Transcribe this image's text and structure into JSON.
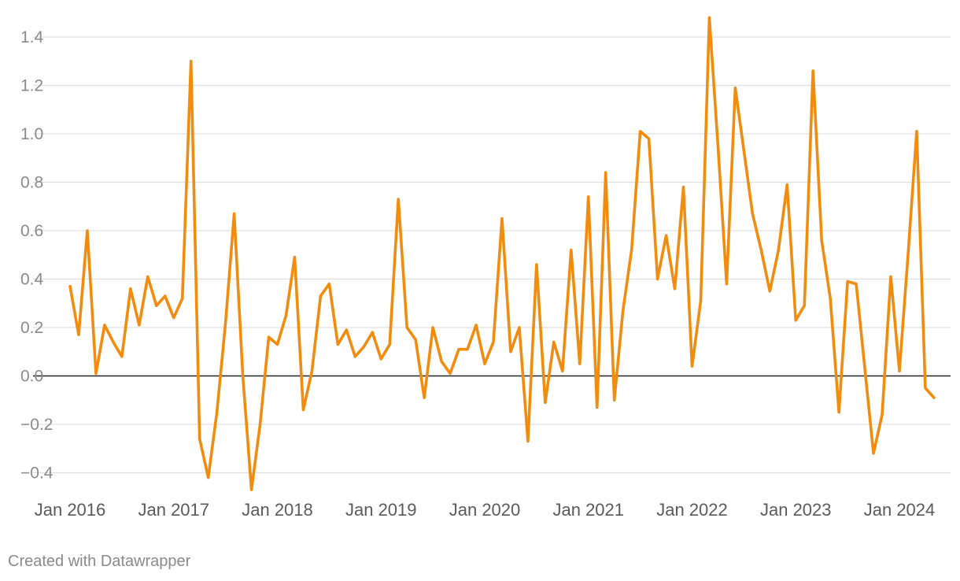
{
  "chart_data": {
    "type": "line",
    "ylim": [
      -0.5,
      1.5
    ],
    "yticks": [
      1.4,
      1.2,
      1.0,
      0.8,
      0.6,
      0.4,
      0.2,
      0.0,
      -0.2,
      -0.4
    ],
    "ytick_labels": [
      "1.4",
      "1.2",
      "1.0",
      "0.8",
      "0.6",
      "0.4",
      "0.2",
      "0.0",
      "−0.2",
      "−0.4"
    ],
    "xtick_labels": [
      "Jan 2016",
      "Jan 2017",
      "Jan 2018",
      "Jan 2019",
      "Jan 2020",
      "Jan 2021",
      "Jan 2022",
      "Jan 2023",
      "Jan 2024"
    ],
    "grid": true,
    "series": [
      {
        "color": "#f28c0f",
        "start": "2016-01",
        "frequency": "monthly",
        "values": [
          0.37,
          0.17,
          0.6,
          0.01,
          0.21,
          0.14,
          0.08,
          0.36,
          0.21,
          0.41,
          0.29,
          0.33,
          0.24,
          0.32,
          1.3,
          -0.26,
          -0.42,
          -0.15,
          0.22,
          0.67,
          0.0,
          -0.47,
          -0.2,
          0.16,
          0.13,
          0.25,
          0.49,
          -0.14,
          0.02,
          0.33,
          0.38,
          0.13,
          0.19,
          0.08,
          0.12,
          0.18,
          0.07,
          0.13,
          0.73,
          0.2,
          0.15,
          -0.09,
          0.2,
          0.06,
          0.01,
          0.11,
          0.11,
          0.21,
          0.05,
          0.14,
          0.65,
          0.1,
          0.2,
          -0.27,
          0.46,
          -0.11,
          0.14,
          0.02,
          0.52,
          0.05,
          0.74,
          -0.13,
          0.84,
          -0.1,
          0.27,
          0.52,
          1.01,
          0.98,
          0.4,
          0.58,
          0.36,
          0.78,
          0.04,
          0.31,
          1.48,
          0.95,
          0.38,
          1.19,
          0.93,
          0.67,
          0.52,
          0.35,
          0.52,
          0.79,
          0.23,
          0.29,
          1.26,
          0.56,
          0.32,
          -0.15,
          0.39,
          0.38,
          0.03,
          -0.32,
          -0.16,
          0.41,
          0.02,
          0.5,
          1.01,
          -0.05,
          -0.09
        ]
      }
    ]
  },
  "footer": {
    "credit": "Created with Datawrapper"
  }
}
